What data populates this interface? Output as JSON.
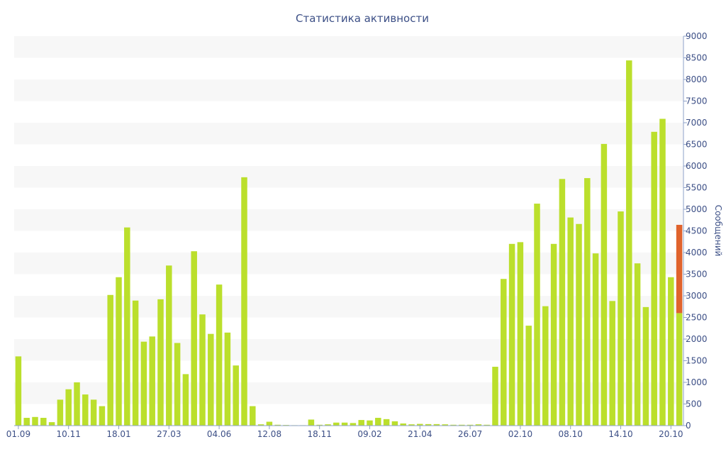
{
  "chart_data": {
    "type": "bar",
    "title": "Статистика активности",
    "ylabel": "Сообщений",
    "ylim": [
      0,
      9000
    ],
    "yticks": [
      0,
      500,
      1000,
      1500,
      2000,
      2500,
      3000,
      3500,
      4000,
      4500,
      5000,
      5500,
      6000,
      6500,
      7000,
      7500,
      8000,
      8500,
      9000
    ],
    "y_axis_side": "right",
    "grid": "alternating horizontal bands",
    "x_tick_labels": [
      {
        "index": 0,
        "label": "01.09"
      },
      {
        "index": 6,
        "label": "10.11"
      },
      {
        "index": 12,
        "label": "18.01"
      },
      {
        "index": 18,
        "label": "27.03"
      },
      {
        "index": 24,
        "label": "04.06"
      },
      {
        "index": 30,
        "label": "12.08"
      },
      {
        "index": 36,
        "label": "18.11"
      },
      {
        "index": 42,
        "label": "09.02"
      },
      {
        "index": 48,
        "label": "21.04"
      },
      {
        "index": 54,
        "label": "26.07"
      },
      {
        "index": 60,
        "label": "02.10"
      },
      {
        "index": 66,
        "label": "08.10"
      },
      {
        "index": 72,
        "label": "14.10"
      },
      {
        "index": 78,
        "label": "20.10"
      }
    ],
    "colors": {
      "bar": "#bbdf2c",
      "highlight": "#e0632c",
      "band": "#f7f7f7",
      "text": "#3c4f86",
      "axis": "#8ea0c8"
    },
    "values": [
      1600,
      180,
      200,
      180,
      80,
      600,
      840,
      1000,
      720,
      600,
      450,
      3020,
      3430,
      4580,
      2890,
      1940,
      2060,
      2920,
      3700,
      1910,
      1190,
      4030,
      2570,
      2120,
      3260,
      2150,
      1390,
      5740,
      450,
      30,
      90,
      20,
      15,
      10,
      10,
      140,
      20,
      30,
      70,
      70,
      60,
      130,
      120,
      180,
      150,
      100,
      50,
      30,
      40,
      35,
      35,
      30,
      20,
      20,
      20,
      30,
      20,
      1360,
      3390,
      4200,
      4240,
      2310,
      5130,
      2760,
      4200,
      5700,
      4810,
      4660,
      5720,
      3980,
      6510,
      2880,
      4950,
      8440,
      3750,
      2740,
      6790,
      7090,
      3430,
      2600
    ],
    "last_bar_highlight_value": 4640
  }
}
